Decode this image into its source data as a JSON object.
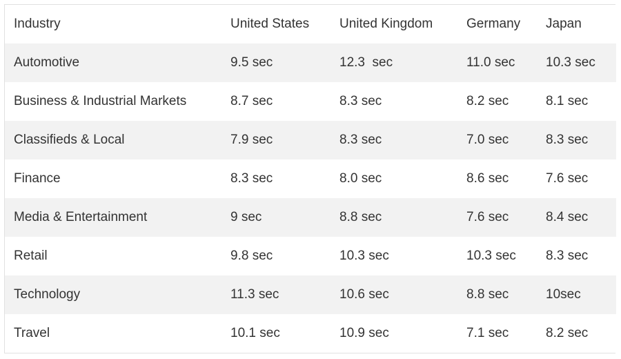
{
  "chart_data": {
    "type": "table",
    "columns": [
      "Industry",
      "United States",
      "United Kingdom",
      "Germany",
      "Japan"
    ],
    "rows": [
      [
        "Automotive",
        "9.5 sec",
        "12.3  sec",
        "11.0 sec",
        "10.3 sec"
      ],
      [
        "Business & Industrial Markets",
        "8.7 sec",
        "8.3 sec",
        "8.2 sec",
        "8.1 sec"
      ],
      [
        "Classifieds & Local",
        "7.9 sec",
        "8.3 sec",
        "7.0 sec",
        "8.3 sec"
      ],
      [
        "Finance",
        "8.3 sec",
        "8.0 sec",
        "8.6 sec",
        "7.6 sec"
      ],
      [
        "Media & Entertainment",
        "9 sec",
        "8.8 sec",
        "7.6 sec",
        "8.4 sec"
      ],
      [
        "Retail",
        "9.8 sec",
        "10.3 sec",
        "10.3 sec",
        "8.3 sec"
      ],
      [
        "Technology",
        "11.3 sec",
        "10.6 sec",
        "8.8 sec",
        "10sec"
      ],
      [
        "Travel",
        "10.1 sec",
        "10.9 sec",
        "7.1 sec",
        "8.2 sec"
      ]
    ]
  }
}
